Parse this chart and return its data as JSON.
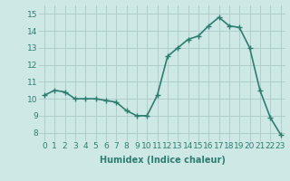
{
  "x": [
    0,
    1,
    2,
    3,
    4,
    5,
    6,
    7,
    8,
    9,
    10,
    11,
    12,
    13,
    14,
    15,
    16,
    17,
    18,
    19,
    20,
    21,
    22,
    23
  ],
  "y": [
    10.2,
    10.5,
    10.4,
    10.0,
    10.0,
    10.0,
    9.9,
    9.8,
    9.3,
    9.0,
    9.0,
    10.2,
    12.5,
    13.0,
    13.5,
    13.7,
    14.3,
    14.8,
    14.3,
    14.2,
    13.0,
    10.5,
    8.9,
    7.9
  ],
  "line_color": "#2e7d6e",
  "marker": "+",
  "marker_size": 4,
  "line_width": 1.2,
  "marker_edge_width": 1.0,
  "xlabel": "Humidex (Indice chaleur)",
  "xlim": [
    -0.5,
    23.5
  ],
  "ylim": [
    7.5,
    15.5
  ],
  "yticks": [
    8,
    9,
    10,
    11,
    12,
    13,
    14,
    15
  ],
  "xticks": [
    0,
    1,
    2,
    3,
    4,
    5,
    6,
    7,
    8,
    9,
    10,
    11,
    12,
    13,
    14,
    15,
    16,
    17,
    18,
    19,
    20,
    21,
    22,
    23
  ],
  "background_color": "#cde8e5",
  "grid_color": "#b0cfcc",
  "axis_fontsize": 7,
  "tick_fontsize": 6.5
}
